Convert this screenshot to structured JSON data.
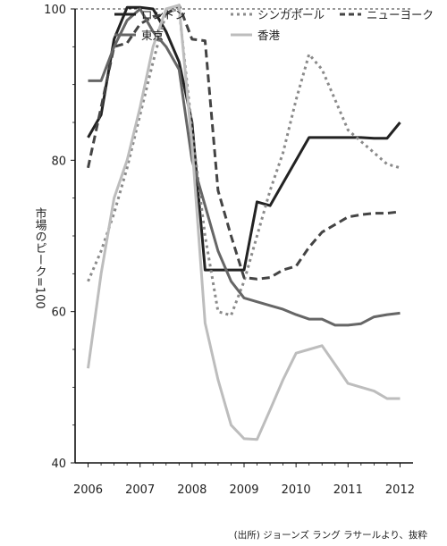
{
  "chart_data": {
    "type": "line",
    "title": "",
    "xlabel": "",
    "ylabel": "市場のピーク=100",
    "x_ticks": [
      "2006",
      "2007",
      "2008",
      "2009",
      "2010",
      "2011",
      "2012"
    ],
    "y_ticks": [
      "40",
      "60",
      "80",
      "100"
    ],
    "xlim": [
      2005.75,
      2012.25
    ],
    "ylim": [
      40,
      100
    ],
    "reference_line": 100,
    "legend_position": "top",
    "source": "(出所) ジョーンズ ラング ラサールより、抜粋",
    "series": [
      {
        "name": "ロンドン",
        "color": "#222222",
        "dash": "solid",
        "x": [
          2006.0,
          2006.25,
          2006.5,
          2006.75,
          2007.0,
          2007.25,
          2007.5,
          2007.75,
          2008.0,
          2008.25,
          2008.5,
          2008.75,
          2009.0,
          2009.25,
          2009.5,
          2009.75,
          2010.0,
          2010.25,
          2010.5,
          2010.75,
          2011.0,
          2011.25,
          2011.5,
          2011.75,
          2012.0
        ],
        "y": [
          83.0,
          86.0,
          96.0,
          100.2,
          100.2,
          100.0,
          97.0,
          93.0,
          85.0,
          65.5,
          65.5,
          65.5,
          65.5,
          74.5,
          74.0,
          77.0,
          80.0,
          83.0,
          83.0,
          83.0,
          83.0,
          83.0,
          82.9,
          82.9,
          85.0
        ]
      },
      {
        "name": "シンガポール",
        "color": "#8a8a8a",
        "dash": "dotted",
        "x": [
          2006.0,
          2006.25,
          2006.5,
          2006.75,
          2007.0,
          2007.25,
          2007.5,
          2007.75,
          2008.0,
          2008.25,
          2008.5,
          2008.75,
          2009.0,
          2009.25,
          2009.5,
          2009.75,
          2010.0,
          2010.25,
          2010.5,
          2010.75,
          2011.0,
          2011.25,
          2011.5,
          2011.75,
          2012.0
        ],
        "y": [
          64.0,
          68.0,
          73.0,
          79.0,
          86.0,
          93.0,
          99.5,
          100.0,
          84.0,
          70.0,
          60.0,
          59.5,
          64.0,
          70.0,
          76.0,
          81.0,
          88.0,
          94.0,
          92.0,
          88.0,
          84.0,
          82.5,
          81.0,
          79.5,
          79.0
        ]
      },
      {
        "name": "ニューヨーク",
        "color": "#444444",
        "dash": "dashed",
        "x": [
          2006.0,
          2006.25,
          2006.5,
          2006.75,
          2007.0,
          2007.25,
          2007.5,
          2007.75,
          2008.0,
          2008.25,
          2008.5,
          2008.75,
          2009.0,
          2009.25,
          2009.5,
          2009.75,
          2010.0,
          2010.25,
          2010.5,
          2010.75,
          2011.0,
          2011.25,
          2011.5,
          2011.75,
          2012.0
        ],
        "y": [
          79.0,
          87.0,
          95.0,
          95.5,
          98.0,
          99.0,
          99.3,
          100.5,
          96.0,
          95.8,
          76.0,
          70.0,
          64.5,
          64.3,
          64.5,
          65.5,
          66.0,
          68.5,
          70.5,
          71.5,
          72.5,
          72.8,
          73.0,
          73.0,
          73.2
        ]
      },
      {
        "name": "東京",
        "color": "#666666",
        "dash": "solid",
        "x": [
          2006.0,
          2006.25,
          2006.5,
          2006.75,
          2007.0,
          2007.25,
          2007.5,
          2007.75,
          2008.0,
          2008.25,
          2008.5,
          2008.75,
          2009.0,
          2009.25,
          2009.5,
          2009.75,
          2010.0,
          2010.25,
          2010.5,
          2010.75,
          2011.0,
          2011.25,
          2011.5,
          2011.75,
          2012.0
        ],
        "y": [
          90.5,
          90.5,
          95.0,
          98.5,
          100.0,
          97.0,
          95.0,
          92.0,
          80.0,
          74.0,
          68.0,
          64.0,
          61.8,
          61.3,
          60.8,
          60.3,
          59.6,
          59.0,
          59.0,
          58.2,
          58.2,
          58.4,
          59.3,
          59.6,
          59.8
        ]
      },
      {
        "name": "香港",
        "color": "#bdbdbd",
        "dash": "solid",
        "x": [
          2006.0,
          2006.25,
          2006.5,
          2006.75,
          2007.0,
          2007.25,
          2007.5,
          2007.75,
          2008.0,
          2008.25,
          2008.5,
          2008.75,
          2009.0,
          2009.25,
          2009.5,
          2009.75,
          2010.0,
          2010.25,
          2010.5,
          2010.75,
          2011.0,
          2011.25,
          2011.5,
          2011.75,
          2012.0
        ],
        "y": [
          52.5,
          65.0,
          75.0,
          80.0,
          87.0,
          95.0,
          100.0,
          100.5,
          82.0,
          58.5,
          51.0,
          45.0,
          43.2,
          43.1,
          47.0,
          51.0,
          54.5,
          55.0,
          55.5,
          53.0,
          50.5,
          50.0,
          49.5,
          48.5,
          48.5
        ]
      }
    ]
  }
}
